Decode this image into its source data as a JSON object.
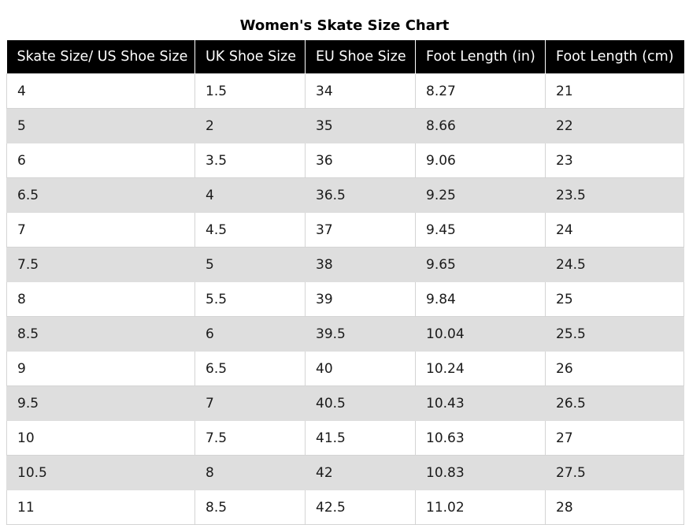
{
  "title": "Women's Skate Size Chart",
  "table": {
    "headers": [
      "Skate Size/ US Shoe Size",
      "UK Shoe Size",
      "EU Shoe Size",
      "Foot Length (in)",
      "Foot Length (cm)"
    ],
    "rows": [
      [
        "4",
        "1.5",
        "34",
        "8.27",
        "21"
      ],
      [
        "5",
        "2",
        "35",
        "8.66",
        "22"
      ],
      [
        "6",
        "3.5",
        "36",
        "9.06",
        "23"
      ],
      [
        "6.5",
        "4",
        "36.5",
        "9.25",
        "23.5"
      ],
      [
        "7",
        "4.5",
        "37",
        "9.45",
        "24"
      ],
      [
        "7.5",
        "5",
        "38",
        "9.65",
        "24.5"
      ],
      [
        "8",
        "5.5",
        "39",
        "9.84",
        "25"
      ],
      [
        "8.5",
        "6",
        "39.5",
        "10.04",
        "25.5"
      ],
      [
        "9",
        "6.5",
        "40",
        "10.24",
        "26"
      ],
      [
        "9.5",
        "7",
        "40.5",
        "10.43",
        "26.5"
      ],
      [
        "10",
        "7.5",
        "41.5",
        "10.63",
        "27"
      ],
      [
        "10.5",
        "8",
        "42",
        "10.83",
        "27.5"
      ],
      [
        "11",
        "8.5",
        "42.5",
        "11.02",
        "28"
      ]
    ]
  },
  "colors": {
    "header_bg": "#000000",
    "header_text": "#ffffff",
    "stripe_bg": "#dedede",
    "row_bg": "#ffffff"
  }
}
